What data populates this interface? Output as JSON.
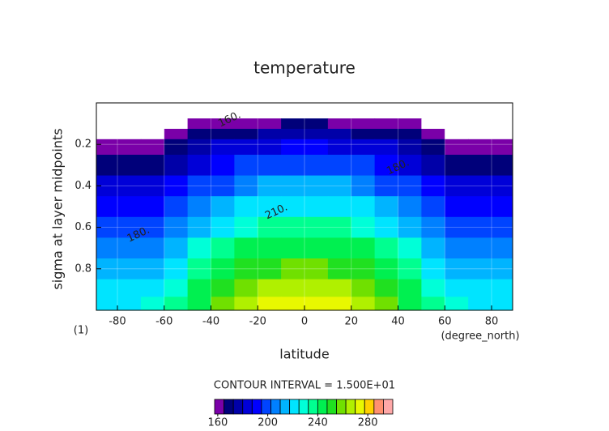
{
  "chart_data": {
    "type": "contourf",
    "title": "temperature",
    "x_label": "latitude",
    "y_label": "sigma at layer midpoints",
    "x_units": "(degree_north)",
    "corner_label": "(1)",
    "contour_interval_label": "CONTOUR INTERVAL = 1.500E+01",
    "xlim": [
      -89,
      89
    ],
    "ylim": [
      1.0,
      0.0
    ],
    "xticks": [
      -80,
      -60,
      -40,
      -20,
      0,
      20,
      40,
      60,
      80
    ],
    "yticks": [
      0.2,
      0.4,
      0.6,
      0.8
    ],
    "grid": true,
    "x": [
      -85,
      -75,
      -65,
      -55,
      -45,
      -35,
      -25,
      -15,
      -5,
      5,
      15,
      25,
      35,
      45,
      55,
      65,
      75,
      85
    ],
    "y": [
      0.05,
      0.1,
      0.15,
      0.2,
      0.3,
      0.4,
      0.5,
      0.6,
      0.7,
      0.8,
      0.9,
      0.97
    ],
    "z": [
      [
        150,
        150,
        150,
        151,
        152,
        154,
        154,
        155,
        155,
        155,
        155,
        154,
        154,
        152,
        151,
        150,
        150,
        150
      ],
      [
        152,
        152,
        153,
        155,
        158,
        161,
        163,
        164,
        165,
        165,
        164,
        163,
        161,
        158,
        155,
        153,
        152,
        152
      ],
      [
        155,
        156,
        157,
        160,
        165,
        169,
        172,
        174,
        175,
        175,
        174,
        172,
        169,
        165,
        160,
        157,
        156,
        155
      ],
      [
        160,
        161,
        163,
        167,
        173,
        180,
        184,
        187,
        188,
        188,
        187,
        184,
        180,
        173,
        167,
        163,
        161,
        160
      ],
      [
        167,
        168,
        170,
        175,
        183,
        190,
        196,
        198,
        200,
        200,
        198,
        196,
        190,
        183,
        175,
        170,
        168,
        167
      ],
      [
        180,
        181,
        183,
        188,
        195,
        202,
        208,
        210,
        212,
        212,
        210,
        208,
        202,
        195,
        188,
        183,
        181,
        180
      ],
      [
        190,
        191,
        193,
        198,
        206,
        214,
        220,
        222,
        224,
        224,
        222,
        220,
        214,
        206,
        198,
        193,
        191,
        190
      ],
      [
        198,
        199,
        202,
        207,
        216,
        224,
        230,
        233,
        235,
        235,
        233,
        230,
        224,
        216,
        207,
        202,
        199,
        198
      ],
      [
        205,
        206,
        209,
        216,
        225,
        234,
        242,
        245,
        247,
        247,
        245,
        242,
        234,
        225,
        216,
        209,
        206,
        205
      ],
      [
        212,
        213,
        216,
        223,
        233,
        243,
        250,
        254,
        256,
        256,
        254,
        250,
        243,
        233,
        223,
        216,
        213,
        212
      ],
      [
        218,
        220,
        223,
        231,
        242,
        253,
        262,
        266,
        268,
        268,
        266,
        262,
        253,
        242,
        231,
        223,
        220,
        218
      ],
      [
        220,
        222,
        225,
        234,
        246,
        258,
        267,
        271,
        273,
        273,
        271,
        267,
        258,
        246,
        234,
        225,
        222,
        220
      ]
    ],
    "colorbar": {
      "levels": [
        157.5,
        165,
        172.5,
        180,
        187.5,
        195,
        202.5,
        210,
        217.5,
        225,
        232.5,
        240,
        247.5,
        255,
        262.5,
        270,
        277.5,
        285,
        292.5,
        300
      ],
      "colors": [
        "#7a00a8",
        "#00007a",
        "#0000a8",
        "#0000d8",
        "#0000ff",
        "#0044ff",
        "#0080ff",
        "#00b4ff",
        "#00e4ff",
        "#00ffd8",
        "#00ff90",
        "#00f050",
        "#20e020",
        "#70e000",
        "#b0f000",
        "#e8f800",
        "#ffd000",
        "#ff9070",
        "#ffa8a8"
      ],
      "ticks": [
        160,
        200,
        240,
        280
      ]
    },
    "contour_labels": [
      {
        "text": "160.",
        "lat": -32,
        "sigma": 0.08
      },
      {
        "text": "180.",
        "lat": 40,
        "sigma": 0.31
      },
      {
        "text": "180.",
        "lat": -71,
        "sigma": 0.635
      },
      {
        "text": "210.",
        "lat": -12,
        "sigma": 0.525
      }
    ]
  }
}
